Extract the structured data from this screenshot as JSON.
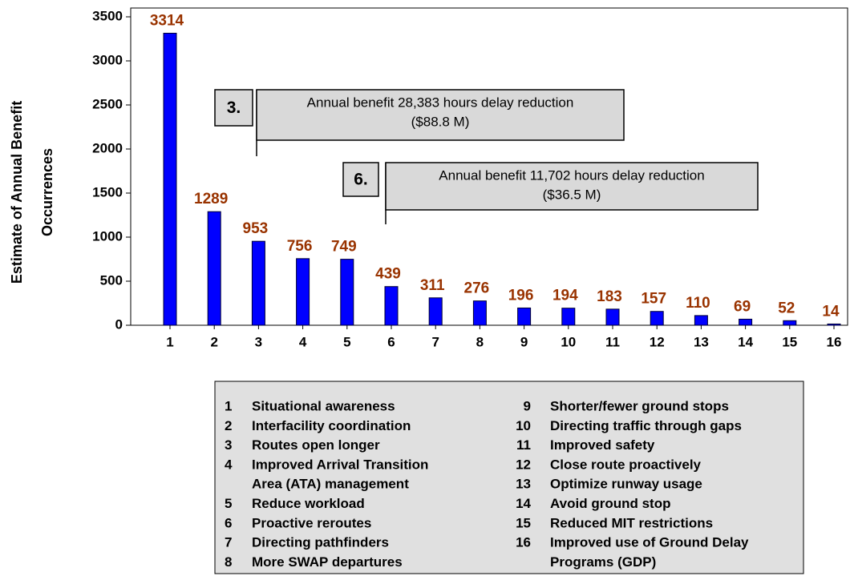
{
  "chart_data": {
    "type": "bar",
    "ylabel": [
      "Estimate of Annual Benefit",
      "Occurrences"
    ],
    "categories": [
      "1",
      "2",
      "3",
      "4",
      "5",
      "6",
      "7",
      "8",
      "9",
      "10",
      "11",
      "12",
      "13",
      "14",
      "15",
      "16"
    ],
    "values": [
      3314,
      1289,
      953,
      756,
      749,
      439,
      311,
      276,
      196,
      194,
      183,
      157,
      110,
      69,
      52,
      14
    ],
    "color": "#0000ff",
    "label_color": "#993300",
    "ylim": [
      0,
      3600
    ],
    "yticks": [
      0,
      500,
      1000,
      1500,
      2000,
      2500,
      3000,
      3500
    ],
    "annotations": [
      {
        "key": "3.",
        "lines": [
          "Annual benefit 28,383 hours delay reduction",
          "($88.8 M)"
        ]
      },
      {
        "key": "6.",
        "lines": [
          "Annual benefit 11,702 hours delay reduction",
          "($36.5 M)"
        ]
      }
    ],
    "legend_labels": [
      [
        "Situational awareness"
      ],
      [
        "Interfacility coordination"
      ],
      [
        "Routes open longer"
      ],
      [
        "Improved Arrival Transition",
        "Area (ATA) management"
      ],
      [
        "Reduce workload"
      ],
      [
        "Proactive reroutes"
      ],
      [
        "Directing pathfinders"
      ],
      [
        "More SWAP departures"
      ],
      [
        "Shorter/fewer ground stops"
      ],
      [
        "Directing traffic through gaps"
      ],
      [
        "Improved safety"
      ],
      [
        "Close route proactively"
      ],
      [
        "Optimize runway usage"
      ],
      [
        "Avoid ground stop"
      ],
      [
        "Reduced MIT restrictions"
      ],
      [
        "Improved use of Ground Delay",
        "Programs (GDP)"
      ]
    ]
  }
}
